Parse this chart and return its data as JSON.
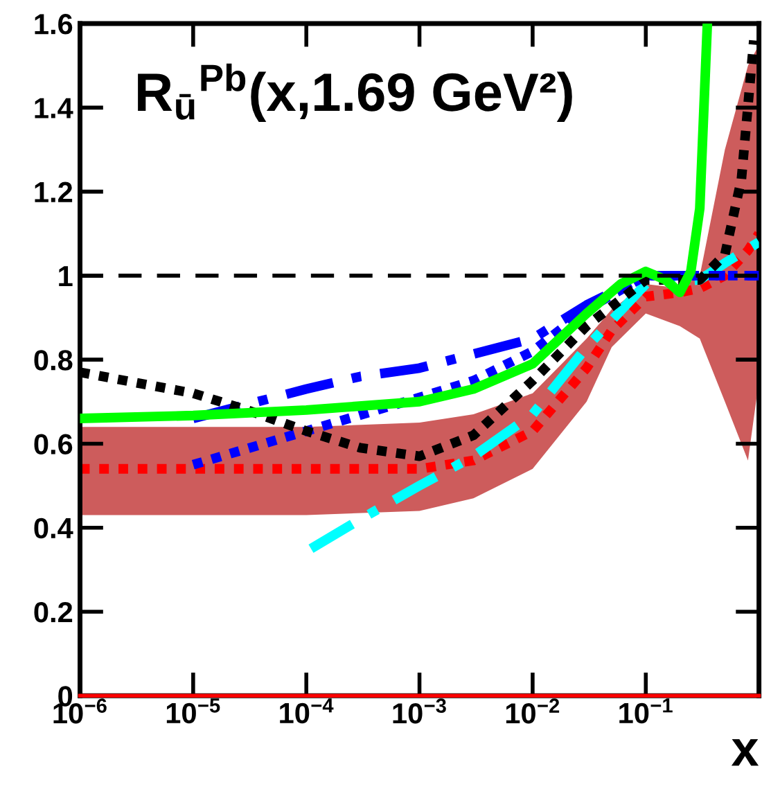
{
  "chart_data": {
    "type": "line",
    "title": "R$_{ū}$$^{Pb}$(x,1.69 GeV²)",
    "xlabel": "x",
    "log": "x",
    "xlim": [
      1e-06,
      1
    ],
    "ylim": [
      0,
      1.6
    ],
    "xticks": [
      {
        "value": 1e-06,
        "label": "10$^{−6}$"
      },
      {
        "value": 1e-05,
        "label": "10$^{−5}$"
      },
      {
        "value": 0.0001,
        "label": "10$^{−4}$"
      },
      {
        "value": 0.001,
        "label": "10$^{−3}$"
      },
      {
        "value": 0.01,
        "label": "10$^{−2}$"
      },
      {
        "value": 0.1,
        "label": "10$^{−1}$"
      },
      {
        "value": 1,
        "label": null
      }
    ],
    "yticks": [
      0,
      0.2,
      0.4,
      0.6,
      0.8,
      1,
      1.2,
      1.4,
      1.6
    ],
    "grid": false,
    "ref_lines": [
      {
        "axis": "y",
        "value": 1,
        "label": null,
        "color": "#000000",
        "line_style": "dashed"
      },
      {
        "axis": "y",
        "value": 0,
        "label": null,
        "color": "#ff0000",
        "line_style": "solid"
      }
    ],
    "series": [
      {
        "color": "#ff0000",
        "line_style": "dotted",
        "x": [
          1e-06,
          1e-05,
          0.0001,
          0.001,
          0.003,
          0.01,
          0.03,
          0.05,
          0.1,
          0.2,
          0.3,
          0.5,
          0.8,
          1
        ],
        "values": [
          0.54,
          0.54,
          0.54,
          0.54,
          0.56,
          0.63,
          0.78,
          0.87,
          0.95,
          0.96,
          0.97,
          1.0,
          1.06,
          1.1
        ],
        "lower": [
          0.43,
          0.43,
          0.43,
          0.44,
          0.47,
          0.54,
          0.7,
          0.83,
          0.91,
          0.88,
          0.85,
          0.7,
          0.56,
          0.75
        ],
        "upper": [
          0.64,
          0.64,
          0.64,
          0.65,
          0.67,
          0.72,
          0.85,
          0.92,
          0.98,
          0.97,
          1.0,
          1.3,
          1.5,
          1.55
        ]
      },
      {
        "color": "#00ffff",
        "line_style": "dashdot",
        "x": [
          0.00011,
          0.0003,
          0.001,
          0.003,
          0.01,
          0.03,
          0.1,
          0.3,
          0.5,
          1
        ],
        "values": [
          0.35,
          0.42,
          0.5,
          0.57,
          0.67,
          0.83,
          0.98,
          0.99,
          1.03,
          1.08
        ]
      },
      {
        "color": "#0000ff",
        "line_style": "dotted",
        "x": [
          1e-05,
          0.0001,
          0.001,
          0.003,
          0.01,
          0.03,
          0.1,
          1
        ],
        "values": [
          0.55,
          0.63,
          0.71,
          0.75,
          0.82,
          0.92,
          1.0,
          1.0
        ]
      },
      {
        "color": "#0000ff",
        "line_style": "dashdot",
        "x": [
          1e-05,
          0.0001,
          0.0003,
          0.001,
          0.01,
          0.03,
          0.1,
          1
        ],
        "values": [
          0.66,
          0.73,
          0.76,
          0.78,
          0.85,
          0.93,
          1.0,
          1.0
        ]
      },
      {
        "color": "#000000",
        "line_style": "dotted",
        "x": [
          1e-06,
          1e-05,
          3e-05,
          0.0001,
          0.0003,
          0.001,
          0.003,
          0.01,
          0.03,
          0.1,
          0.3,
          0.5,
          0.7,
          0.9
        ],
        "values": [
          0.77,
          0.72,
          0.68,
          0.63,
          0.59,
          0.57,
          0.62,
          0.75,
          0.88,
          0.99,
          0.99,
          1.05,
          1.23,
          1.56
        ]
      },
      {
        "color": "#00ff00",
        "line_style": "solid",
        "x": [
          1e-06,
          1e-05,
          0.0001,
          0.001,
          0.003,
          0.01,
          0.03,
          0.06,
          0.1,
          0.15,
          0.2,
          0.25,
          0.3,
          0.35
        ],
        "values": [
          0.66,
          0.667,
          0.68,
          0.7,
          0.73,
          0.79,
          0.91,
          0.98,
          1.01,
          0.99,
          0.96,
          1.01,
          1.16,
          1.6
        ]
      }
    ]
  }
}
